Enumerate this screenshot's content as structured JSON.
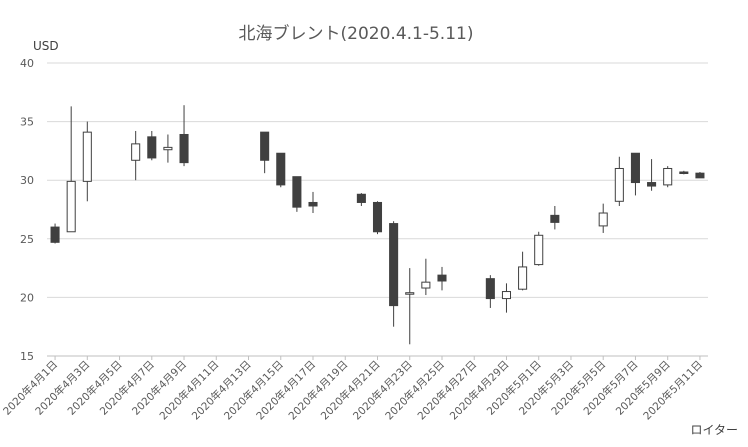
{
  "chart_data": {
    "type": "candlestick",
    "title": "北海ブレント(2020.4.1-5.11)",
    "ylabel": "USD",
    "ylim": [
      15,
      40
    ],
    "yticks": [
      15,
      20,
      25,
      30,
      35,
      40
    ],
    "grid": "horizontal",
    "source": "ロイター",
    "colors": {
      "up": "#ffffff",
      "down": "#404040",
      "edge": "#404040",
      "grid": "#d9d9d9"
    },
    "x_dates": [
      "2020-04-01",
      "2020-04-02",
      "2020-04-03",
      "2020-04-04",
      "2020-04-05",
      "2020-04-06",
      "2020-04-07",
      "2020-04-08",
      "2020-04-09",
      "2020-04-10",
      "2020-04-11",
      "2020-04-12",
      "2020-04-13",
      "2020-04-14",
      "2020-04-15",
      "2020-04-16",
      "2020-04-17",
      "2020-04-18",
      "2020-04-19",
      "2020-04-20",
      "2020-04-21",
      "2020-04-22",
      "2020-04-23",
      "2020-04-24",
      "2020-04-25",
      "2020-04-26",
      "2020-04-27",
      "2020-04-28",
      "2020-04-29",
      "2020-04-30",
      "2020-05-01",
      "2020-05-02",
      "2020-05-03",
      "2020-05-04",
      "2020-05-05",
      "2020-05-06",
      "2020-05-07",
      "2020-05-08",
      "2020-05-09",
      "2020-05-10",
      "2020-05-11"
    ],
    "tick_labels": [
      "2020年4月1日",
      "2020年4月3日",
      "2020年4月5日",
      "2020年4月7日",
      "2020年4月9日",
      "2020年4月11日",
      "2020年4月13日",
      "2020年4月15日",
      "2020年4月17日",
      "2020年4月19日",
      "2020年4月21日",
      "2020年4月23日",
      "2020年4月25日",
      "2020年4月27日",
      "2020年4月29日",
      "2020年5月1日",
      "2020年5月3日",
      "2020年5月5日",
      "2020年5月7日",
      "2020年5月9日",
      "2020年5月11日"
    ],
    "candles": [
      {
        "date": "2020-04-01",
        "open": 26.0,
        "high": 26.3,
        "low": 24.6,
        "close": 24.7
      },
      {
        "date": "2020-04-02",
        "open": 25.6,
        "high": 36.3,
        "low": 25.6,
        "close": 29.9
      },
      {
        "date": "2020-04-03",
        "open": 29.9,
        "high": 35.0,
        "low": 28.2,
        "close": 34.1
      },
      {
        "date": "2020-04-06",
        "open": 31.7,
        "high": 34.2,
        "low": 30.0,
        "close": 33.1
      },
      {
        "date": "2020-04-07",
        "open": 33.7,
        "high": 34.2,
        "low": 31.7,
        "close": 31.9
      },
      {
        "date": "2020-04-08",
        "open": 32.6,
        "high": 33.9,
        "low": 31.5,
        "close": 32.8
      },
      {
        "date": "2020-04-09",
        "open": 33.9,
        "high": 36.4,
        "low": 31.2,
        "close": 31.5
      },
      {
        "date": "2020-04-14",
        "open": 34.1,
        "high": 34.1,
        "low": 30.6,
        "close": 31.7
      },
      {
        "date": "2020-04-15",
        "open": 32.3,
        "high": 32.3,
        "low": 29.4,
        "close": 29.6
      },
      {
        "date": "2020-04-16",
        "open": 30.3,
        "high": 30.3,
        "low": 27.3,
        "close": 27.7
      },
      {
        "date": "2020-04-17",
        "open": 28.1,
        "high": 29.0,
        "low": 27.2,
        "close": 27.8
      },
      {
        "date": "2020-04-20",
        "open": 28.8,
        "high": 28.9,
        "low": 27.8,
        "close": 28.1
      },
      {
        "date": "2020-04-21",
        "open": 28.1,
        "high": 28.2,
        "low": 25.4,
        "close": 25.6
      },
      {
        "date": "2020-04-22",
        "open": 26.3,
        "high": 26.5,
        "low": 17.5,
        "close": 19.3
      },
      {
        "date": "2020-04-23",
        "open": 20.3,
        "high": 22.5,
        "low": 16.0,
        "close": 20.4
      },
      {
        "date": "2020-04-24",
        "open": 20.8,
        "high": 23.3,
        "low": 20.2,
        "close": 21.3
      },
      {
        "date": "2020-04-25",
        "open": 21.9,
        "high": 22.6,
        "low": 20.6,
        "close": 21.4
      },
      {
        "date": "2020-04-28",
        "open": 21.6,
        "high": 21.9,
        "low": 19.1,
        "close": 19.9
      },
      {
        "date": "2020-04-29",
        "open": 19.9,
        "high": 21.2,
        "low": 18.7,
        "close": 20.5
      },
      {
        "date": "2020-04-30",
        "open": 20.7,
        "high": 23.9,
        "low": 20.6,
        "close": 22.6
      },
      {
        "date": "2020-05-01",
        "open": 22.8,
        "high": 25.6,
        "low": 22.7,
        "close": 25.3
      },
      {
        "date": "2020-05-02",
        "open": 27.0,
        "high": 27.8,
        "low": 25.8,
        "close": 26.4
      },
      {
        "date": "2020-05-05",
        "open": 26.1,
        "high": 28.0,
        "low": 25.5,
        "close": 27.2
      },
      {
        "date": "2020-05-06",
        "open": 28.2,
        "high": 32.0,
        "low": 27.8,
        "close": 31.0
      },
      {
        "date": "2020-05-07",
        "open": 32.3,
        "high": 32.3,
        "low": 28.7,
        "close": 29.8
      },
      {
        "date": "2020-05-08",
        "open": 29.8,
        "high": 31.8,
        "low": 29.1,
        "close": 29.5
      },
      {
        "date": "2020-05-09",
        "open": 29.6,
        "high": 31.2,
        "low": 29.4,
        "close": 31.0
      },
      {
        "date": "2020-05-10",
        "open": 30.7,
        "high": 30.8,
        "low": 30.5,
        "close": 30.6
      },
      {
        "date": "2020-05-11",
        "open": 30.6,
        "high": 30.7,
        "low": 30.2,
        "close": 30.2
      }
    ]
  }
}
